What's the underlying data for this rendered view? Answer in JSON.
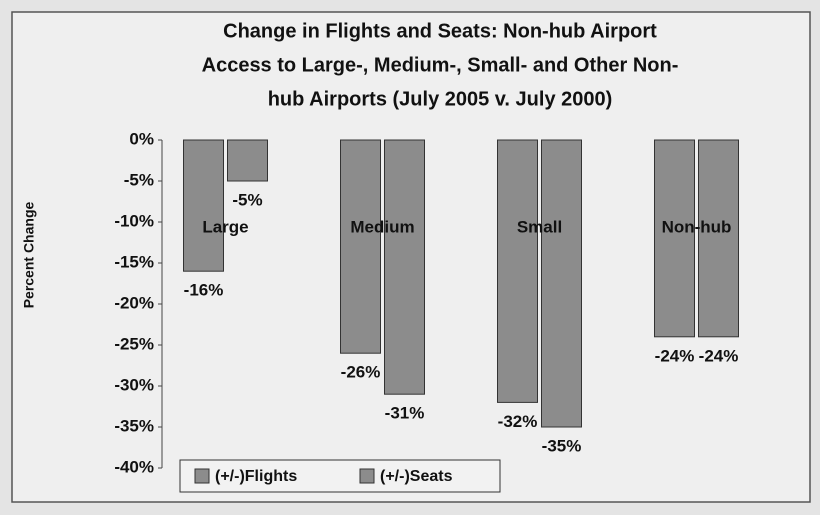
{
  "chart_data": {
    "type": "bar",
    "title": [
      "Change in Flights and Seats:  Non-hub Airport",
      "Access to Large-, Medium-, Small- and Other Non-",
      "hub Airports (July 2005 v. July 2000)"
    ],
    "y_label": "Percent Change",
    "categories": [
      "Large",
      "Medium",
      "Small",
      "Non-hub"
    ],
    "series": [
      {
        "name": "(+/-)Flights",
        "color": "#8c8c8c",
        "values": [
          -16,
          -26,
          -32,
          -24
        ],
        "value_labels": [
          "-16%",
          "-26%",
          "-32%",
          "-24%"
        ]
      },
      {
        "name": "(+/-)Seats",
        "color": "#8c8c8c",
        "values": [
          -5,
          -31,
          -35,
          -24
        ],
        "value_labels": [
          "-5%",
          "-31%",
          "-35%",
          "-24%"
        ]
      }
    ],
    "ylim": [
      -40,
      0
    ],
    "yticks": [
      {
        "value": 0,
        "label": "0%"
      },
      {
        "value": -5,
        "label": "-5%"
      },
      {
        "value": -10,
        "label": "-10%"
      },
      {
        "value": -15,
        "label": "-15%"
      },
      {
        "value": -20,
        "label": "-20%"
      },
      {
        "value": -25,
        "label": "-25%"
      },
      {
        "value": -30,
        "label": "-30%"
      },
      {
        "value": -35,
        "label": "-35%"
      },
      {
        "value": -40,
        "label": "-40%"
      }
    ],
    "legend": "bottom"
  }
}
